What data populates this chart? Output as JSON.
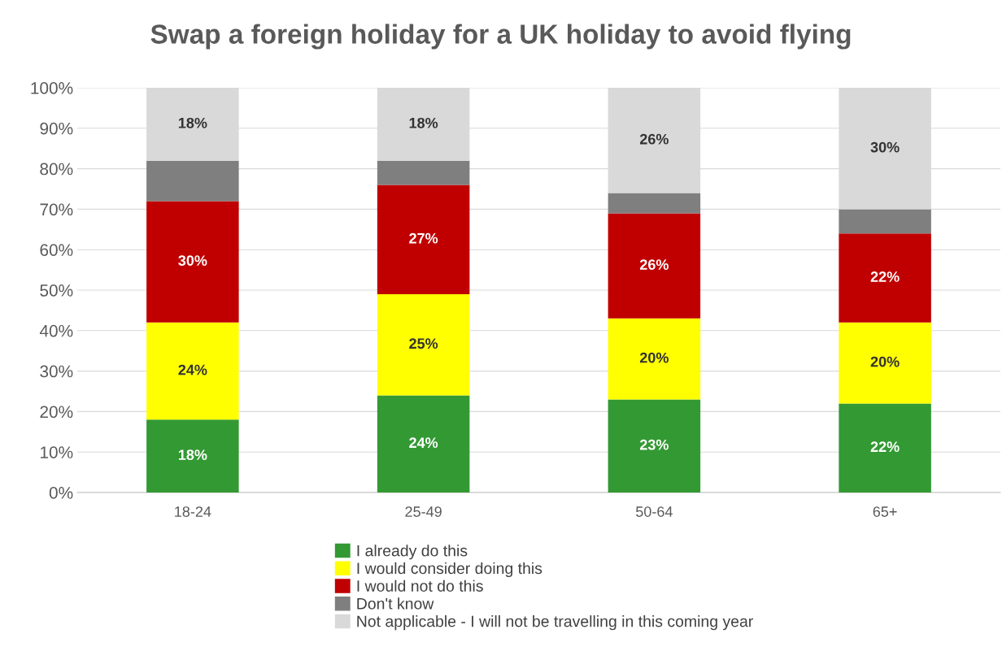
{
  "chart_data": {
    "type": "bar",
    "stacked": true,
    "title": "Swap a foreign holiday for a UK holiday to avoid flying",
    "categories": [
      "18-24",
      "25-49",
      "50-64",
      "65+"
    ],
    "series": [
      {
        "name": "I already do this",
        "color": "#339933",
        "values": [
          18,
          24,
          23,
          22
        ],
        "value_labels": [
          "18%",
          "24%",
          "23%",
          "22%"
        ]
      },
      {
        "name": "I would consider doing this",
        "color": "#ffff00",
        "values": [
          24,
          25,
          20,
          20
        ],
        "value_labels": [
          "24%",
          "25%",
          "20%",
          "20%"
        ]
      },
      {
        "name": "I would not do this",
        "color": "#c00000",
        "values": [
          30,
          27,
          26,
          22
        ],
        "value_labels": [
          "30%",
          "27%",
          "26%",
          "22%"
        ]
      },
      {
        "name": "Don't know",
        "color": "#7f7f7f",
        "values": [
          10,
          6,
          5,
          6
        ],
        "value_labels": [
          null,
          null,
          null,
          null
        ]
      },
      {
        "name": "Not applicable - I will not be travelling in this coming year",
        "color": "#d9d9d9",
        "values": [
          18,
          18,
          26,
          30
        ],
        "value_labels": [
          "18%",
          "18%",
          "26%",
          "30%"
        ]
      }
    ],
    "ylim": [
      0,
      100
    ],
    "yticks": [
      {
        "value": 0,
        "label": "0%"
      },
      {
        "value": 10,
        "label": "10%"
      },
      {
        "value": 20,
        "label": "20%"
      },
      {
        "value": 30,
        "label": "30%"
      },
      {
        "value": 40,
        "label": "40%"
      },
      {
        "value": 50,
        "label": "50%"
      },
      {
        "value": 60,
        "label": "60%"
      },
      {
        "value": 70,
        "label": "70%"
      },
      {
        "value": 80,
        "label": "80%"
      },
      {
        "value": 90,
        "label": "90%"
      },
      {
        "value": 100,
        "label": "100%"
      }
    ],
    "grid": "y",
    "legend": "bottom"
  }
}
